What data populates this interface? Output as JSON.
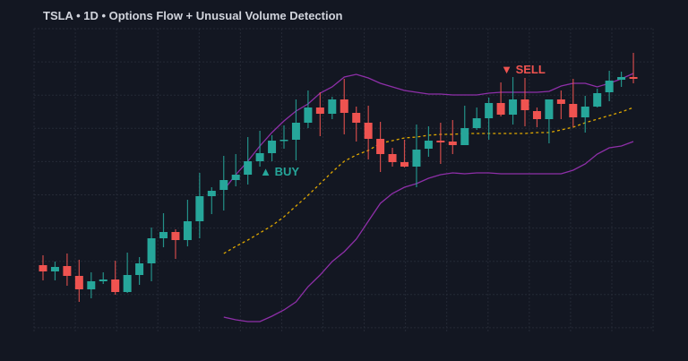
{
  "chart_data": {
    "type": "candlestick",
    "title": "TSLA • 1D • Options Flow + Unusual Volume Detection",
    "xlabel": "",
    "ylabel": "",
    "grid": true,
    "ylim": [
      34,
      368
    ],
    "colors": {
      "up": "#26a69a",
      "down": "#ef5350",
      "band": "#8e2fa8",
      "middle": "#e0a800",
      "grid": "#252a36",
      "background": "#131722",
      "title": "#d1d4dc"
    },
    "ohlc": [
      [
        104,
        115,
        87,
        97
      ],
      [
        97,
        108,
        87,
        102
      ],
      [
        103,
        117,
        81,
        92
      ],
      [
        92,
        110,
        63,
        77
      ],
      [
        77,
        96,
        67,
        86
      ],
      [
        86,
        96,
        83,
        88
      ],
      [
        88,
        109,
        71,
        74
      ],
      [
        74,
        118,
        73,
        93
      ],
      [
        93,
        113,
        82,
        106
      ],
      [
        106,
        146,
        86,
        134
      ],
      [
        134,
        162,
        124,
        141
      ],
      [
        141,
        144,
        111,
        132
      ],
      [
        132,
        177,
        125,
        153
      ],
      [
        153,
        207,
        134,
        181
      ],
      [
        181,
        191,
        161,
        187
      ],
      [
        188,
        226,
        165,
        199
      ],
      [
        199,
        228,
        192,
        205
      ],
      [
        205,
        247,
        194,
        220
      ],
      [
        220,
        254,
        214,
        229
      ],
      [
        229,
        249,
        220,
        243
      ],
      [
        243,
        260,
        234,
        244
      ],
      [
        244,
        289,
        221,
        263
      ],
      [
        263,
        299,
        257,
        280
      ],
      [
        280,
        297,
        248,
        273
      ],
      [
        273,
        292,
        267,
        289
      ],
      [
        289,
        312,
        250,
        274
      ],
      [
        274,
        281,
        242,
        263
      ],
      [
        263,
        282,
        222,
        245
      ],
      [
        245,
        264,
        208,
        228
      ],
      [
        228,
        235,
        214,
        219
      ],
      [
        219,
        244,
        213,
        214
      ],
      [
        214,
        261,
        191,
        233
      ],
      [
        234,
        259,
        225,
        243
      ],
      [
        243,
        263,
        217,
        241
      ],
      [
        242,
        266,
        228,
        238
      ],
      [
        238,
        282,
        238,
        257
      ],
      [
        257,
        280,
        255,
        268
      ],
      [
        268,
        291,
        244,
        285
      ],
      [
        285,
        308,
        270,
        272
      ],
      [
        272,
        314,
        261,
        289
      ],
      [
        289,
        313,
        259,
        277
      ],
      [
        276,
        280,
        258,
        267
      ],
      [
        267,
        289,
        240,
        289
      ],
      [
        289,
        299,
        267,
        284
      ],
      [
        284,
        312,
        258,
        269
      ],
      [
        269,
        293,
        252,
        281
      ],
      [
        281,
        301,
        280,
        296
      ],
      [
        297,
        321,
        287,
        310
      ],
      [
        311,
        320,
        303,
        314
      ],
      [
        314,
        341,
        307,
        312
      ]
    ],
    "bands_start_index": 15,
    "upper_band": [
      188,
      205,
      220,
      237,
      252,
      265,
      276,
      284,
      296,
      303,
      314,
      317,
      313,
      307,
      303,
      299,
      297,
      295,
      295,
      294,
      294,
      294,
      296,
      297,
      297,
      297,
      297,
      298,
      304,
      307,
      307,
      303,
      307,
      312,
      318
    ],
    "middle_band": [
      117,
      125,
      132,
      140,
      148,
      158,
      170,
      182,
      195,
      208,
      220,
      227,
      232,
      240,
      243,
      246,
      247,
      249,
      250,
      250,
      251,
      251,
      251,
      251,
      251,
      251,
      252,
      252,
      255,
      258,
      263,
      267,
      271,
      275,
      280
    ],
    "lower_band": [
      46,
      43,
      41,
      41,
      47,
      54,
      63,
      80,
      93,
      108,
      119,
      133,
      153,
      173,
      184,
      191,
      195,
      201,
      205,
      207,
      206,
      207,
      207,
      206,
      206,
      206,
      206,
      206,
      206,
      210,
      217,
      228,
      235,
      237,
      242
    ],
    "annotations": [
      {
        "text": "▲ BUY",
        "index": 18,
        "value": 204,
        "color": "#26a69a"
      },
      {
        "text": "▼ SELL",
        "index": 38,
        "value": 318,
        "color": "#ef5350"
      }
    ]
  }
}
